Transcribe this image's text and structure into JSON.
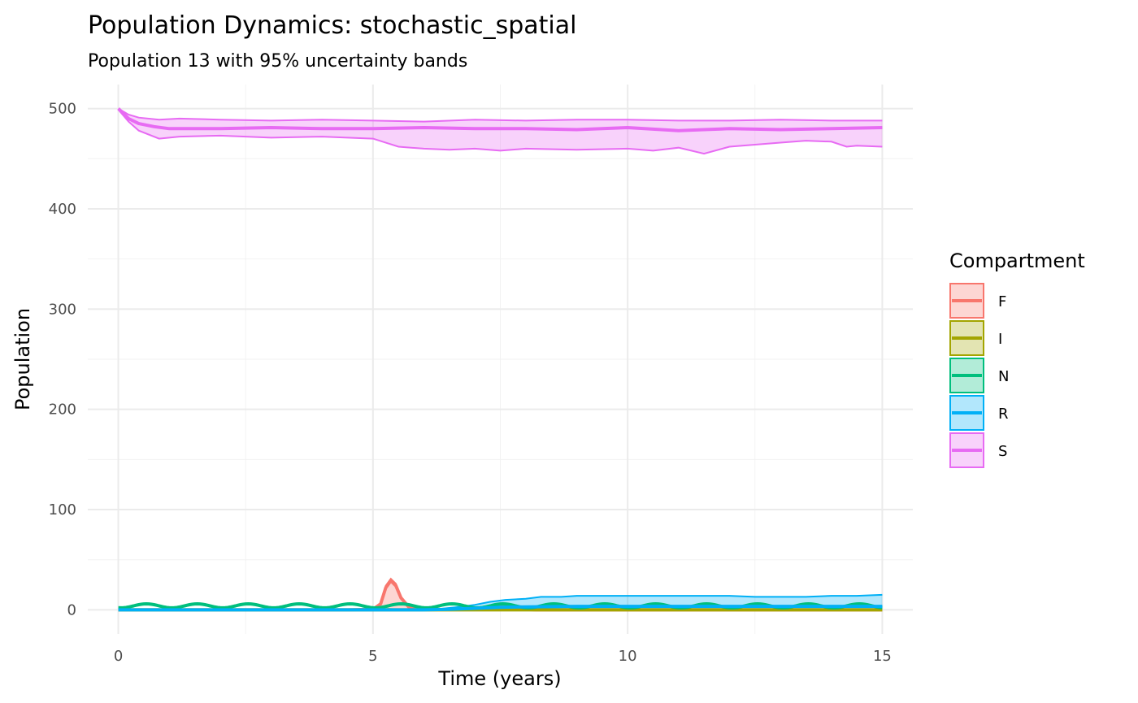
{
  "chart_data": {
    "type": "area",
    "title": "Population Dynamics: stochastic_spatial",
    "subtitle": "Population 13 with 95% uncertainty bands",
    "xlabel": "Time (years)",
    "ylabel": "Population",
    "xlim": [
      -0.6,
      15.6
    ],
    "ylim": [
      -24,
      524
    ],
    "x_ticks": [
      0,
      5,
      10,
      15
    ],
    "y_ticks": [
      0,
      100,
      200,
      300,
      400,
      500
    ],
    "x_tick_labels": [
      "0",
      "5",
      "10",
      "15"
    ],
    "y_tick_labels": [
      "0",
      "100",
      "200",
      "300",
      "400",
      "500"
    ],
    "grid": true,
    "legend": {
      "title": "Compartment",
      "position": "right"
    },
    "series": [
      {
        "name": "F",
        "color": "#F8766D",
        "mean": [
          [
            0,
            0
          ],
          [
            4.5,
            0
          ],
          [
            5.0,
            0.5
          ],
          [
            5.15,
            6
          ],
          [
            5.25,
            22
          ],
          [
            5.35,
            29
          ],
          [
            5.45,
            24
          ],
          [
            5.55,
            12
          ],
          [
            5.7,
            3
          ],
          [
            5.9,
            0.5
          ],
          [
            6.5,
            0.3
          ],
          [
            7.3,
            0.5
          ],
          [
            7.6,
            3
          ],
          [
            7.8,
            1
          ],
          [
            8.2,
            0
          ],
          [
            15,
            0
          ]
        ],
        "lower": [
          [
            0,
            0
          ],
          [
            15,
            0
          ]
        ],
        "upper": [
          [
            0,
            0
          ],
          [
            4.5,
            0
          ],
          [
            5.0,
            0.5
          ],
          [
            5.15,
            7
          ],
          [
            5.25,
            24
          ],
          [
            5.35,
            31
          ],
          [
            5.45,
            26
          ],
          [
            5.55,
            13
          ],
          [
            5.7,
            3
          ],
          [
            5.9,
            0.5
          ],
          [
            6.5,
            0.3
          ],
          [
            7.3,
            1
          ],
          [
            7.6,
            6
          ],
          [
            7.8,
            2
          ],
          [
            8.2,
            0
          ],
          [
            15,
            0
          ]
        ]
      },
      {
        "name": "I",
        "color": "#A3A500",
        "mean": [
          [
            0,
            0
          ],
          [
            15,
            0
          ]
        ],
        "lower": [
          [
            0,
            0
          ],
          [
            15,
            0
          ]
        ],
        "upper": [
          [
            0,
            0
          ],
          [
            4.9,
            0
          ],
          [
            5.3,
            1
          ],
          [
            5.7,
            0
          ],
          [
            7.2,
            0
          ],
          [
            7.6,
            1
          ],
          [
            8.0,
            0
          ],
          [
            15,
            0
          ]
        ]
      },
      {
        "name": "N",
        "color": "#00BF7D",
        "mean_periodic": {
          "t0": 0,
          "t1": 15,
          "period": 1.0,
          "phase": 0.3,
          "base": 4,
          "amp": 4,
          "step": 0.05
        },
        "lower": [
          [
            0,
            0
          ],
          [
            15,
            0
          ]
        ],
        "upper": [
          [
            0,
            0
          ],
          [
            15,
            0
          ]
        ]
      },
      {
        "name": "R",
        "color": "#00B0F6",
        "mean": [
          [
            0,
            0
          ],
          [
            6.0,
            0
          ],
          [
            6.5,
            0.5
          ],
          [
            7.0,
            1.5
          ],
          [
            7.5,
            2.5
          ],
          [
            8.0,
            3
          ],
          [
            9.0,
            3.5
          ],
          [
            10.0,
            3.5
          ],
          [
            12.0,
            3.5
          ],
          [
            15,
            3.5
          ]
        ],
        "lower": [
          [
            0,
            0
          ],
          [
            15,
            0
          ]
        ],
        "upper": [
          [
            0,
            0
          ],
          [
            6.0,
            0
          ],
          [
            6.3,
            1
          ],
          [
            6.7,
            3
          ],
          [
            7.0,
            5
          ],
          [
            7.3,
            8
          ],
          [
            7.6,
            10
          ],
          [
            8.0,
            11
          ],
          [
            8.3,
            13
          ],
          [
            8.7,
            13
          ],
          [
            9.0,
            14
          ],
          [
            9.5,
            14
          ],
          [
            10.0,
            14
          ],
          [
            11.0,
            14
          ],
          [
            12.0,
            14
          ],
          [
            12.5,
            13
          ],
          [
            13.0,
            13
          ],
          [
            13.5,
            13
          ],
          [
            14.0,
            14
          ],
          [
            14.5,
            14
          ],
          [
            15,
            15
          ]
        ]
      },
      {
        "name": "S",
        "color": "#E76BF3",
        "mean": [
          [
            0,
            500
          ],
          [
            0.2,
            490
          ],
          [
            0.4,
            485
          ],
          [
            0.7,
            482
          ],
          [
            1.0,
            480
          ],
          [
            2,
            480
          ],
          [
            3,
            481
          ],
          [
            4,
            480
          ],
          [
            5,
            480
          ],
          [
            6,
            481
          ],
          [
            7,
            480
          ],
          [
            8,
            480
          ],
          [
            9,
            479
          ],
          [
            10,
            481
          ],
          [
            11,
            478
          ],
          [
            11.5,
            479
          ],
          [
            12,
            480
          ],
          [
            13,
            479
          ],
          [
            14,
            480
          ],
          [
            15,
            481
          ]
        ],
        "lower": [
          [
            0,
            499
          ],
          [
            0.2,
            487
          ],
          [
            0.4,
            478
          ],
          [
            0.8,
            470
          ],
          [
            1.2,
            472
          ],
          [
            2,
            473
          ],
          [
            3,
            471
          ],
          [
            4,
            472
          ],
          [
            5,
            470
          ],
          [
            5.5,
            462
          ],
          [
            6,
            460
          ],
          [
            6.5,
            459
          ],
          [
            7,
            460
          ],
          [
            7.5,
            458
          ],
          [
            8,
            460
          ],
          [
            9,
            459
          ],
          [
            10,
            460
          ],
          [
            10.5,
            458
          ],
          [
            11,
            461
          ],
          [
            11.5,
            455
          ],
          [
            12,
            462
          ],
          [
            12.5,
            464
          ],
          [
            13,
            466
          ],
          [
            13.5,
            468
          ],
          [
            14,
            467
          ],
          [
            14.3,
            462
          ],
          [
            14.5,
            463
          ],
          [
            15,
            462
          ]
        ],
        "upper": [
          [
            0,
            500
          ],
          [
            0.2,
            494
          ],
          [
            0.4,
            491
          ],
          [
            0.8,
            489
          ],
          [
            1.2,
            490
          ],
          [
            2,
            489
          ],
          [
            3,
            488
          ],
          [
            4,
            489
          ],
          [
            5,
            488
          ],
          [
            6,
            487
          ],
          [
            7,
            489
          ],
          [
            8,
            488
          ],
          [
            9,
            489
          ],
          [
            10,
            489
          ],
          [
            11,
            488
          ],
          [
            11.5,
            488
          ],
          [
            12,
            488
          ],
          [
            13,
            489
          ],
          [
            14,
            488
          ],
          [
            15,
            488
          ]
        ]
      }
    ]
  }
}
